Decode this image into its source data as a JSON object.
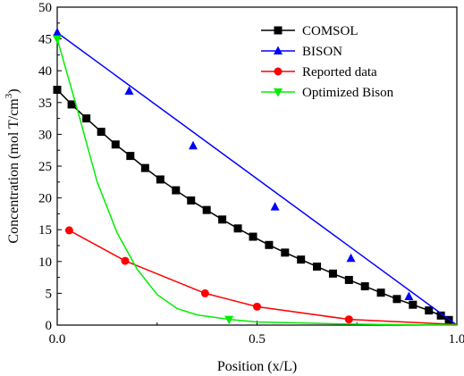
{
  "chart_data": {
    "type": "line",
    "xlabel": "Position (x/L)",
    "ylabel": "Concentration (mol T/cm",
    "ylabel_superscript": "3",
    "ylabel_close": ")",
    "xlim": [
      0,
      1
    ],
    "ylim": [
      0,
      50
    ],
    "x_ticks": [
      "0.0",
      "0.5",
      "1.0"
    ],
    "y_ticks": [
      "0",
      "5",
      "10",
      "15",
      "20",
      "25",
      "30",
      "35",
      "40",
      "45",
      "50"
    ],
    "grid": false,
    "legend_position": "top-right",
    "series": [
      {
        "name": "COMSOL",
        "color": "#000000",
        "marker": "square",
        "line_x": [
          0,
          0.036,
          0.073,
          0.11,
          0.146,
          0.183,
          0.22,
          0.258,
          0.297,
          0.335,
          0.374,
          0.413,
          0.452,
          0.49,
          0.53,
          0.57,
          0.61,
          0.65,
          0.69,
          0.73,
          0.77,
          0.81,
          0.85,
          0.89,
          0.93,
          0.96,
          0.98
        ],
        "line_y": [
          37,
          34.7,
          32.5,
          30.4,
          28.4,
          26.6,
          24.7,
          22.9,
          21.2,
          19.6,
          18.1,
          16.6,
          15.2,
          13.9,
          12.6,
          11.4,
          10.3,
          9.2,
          8.1,
          7.1,
          6.1,
          5.1,
          4.1,
          3.2,
          2.3,
          1.5,
          0.8
        ],
        "marker_x": [
          0,
          0.036,
          0.073,
          0.11,
          0.146,
          0.183,
          0.22,
          0.258,
          0.297,
          0.335,
          0.374,
          0.413,
          0.452,
          0.49,
          0.53,
          0.57,
          0.61,
          0.65,
          0.69,
          0.73,
          0.77,
          0.81,
          0.85,
          0.89,
          0.93,
          0.96,
          0.98
        ],
        "marker_y": [
          37,
          34.7,
          32.5,
          30.4,
          28.4,
          26.6,
          24.7,
          22.9,
          21.2,
          19.6,
          18.1,
          16.6,
          15.2,
          13.9,
          12.6,
          11.4,
          10.3,
          9.2,
          8.1,
          7.1,
          6.1,
          5.1,
          4.1,
          3.2,
          2.3,
          1.5,
          0.8
        ]
      },
      {
        "name": "BISON",
        "color": "#0000ff",
        "marker": "triangle-up",
        "line_x": [
          0,
          1.0
        ],
        "line_y": [
          46,
          0
        ],
        "marker_x": [
          0,
          0.18,
          0.34,
          0.545,
          0.735,
          0.88
        ],
        "marker_y": [
          46,
          36.8,
          28.2,
          18.6,
          10.5,
          4.5
        ]
      },
      {
        "name": "Reported data",
        "color": "#ff0000",
        "marker": "circle",
        "line_x": [
          0.03,
          0.17,
          0.37,
          0.5,
          0.73,
          1.0
        ],
        "line_y": [
          14.9,
          10.1,
          5.0,
          2.9,
          0.9,
          0.1
        ],
        "marker_x": [
          0.03,
          0.17,
          0.37,
          0.5,
          0.73
        ],
        "marker_y": [
          14.9,
          10.1,
          5.0,
          2.9,
          0.9
        ]
      },
      {
        "name": "Optimized Bison",
        "color": "#00ee00",
        "marker": "triangle-down",
        "line_x": [
          0,
          0.05,
          0.1,
          0.15,
          0.2,
          0.25,
          0.3,
          0.35,
          0.43,
          0.5,
          0.6,
          0.7,
          0.8,
          0.9,
          1.0
        ],
        "line_y": [
          45,
          34,
          22.5,
          14.5,
          8.8,
          4.8,
          2.6,
          1.6,
          0.9,
          0.5,
          0.35,
          0.2,
          0.1,
          0.05,
          0
        ],
        "marker_x": [
          0,
          0.43
        ],
        "marker_y": [
          45,
          0.9
        ]
      }
    ]
  }
}
